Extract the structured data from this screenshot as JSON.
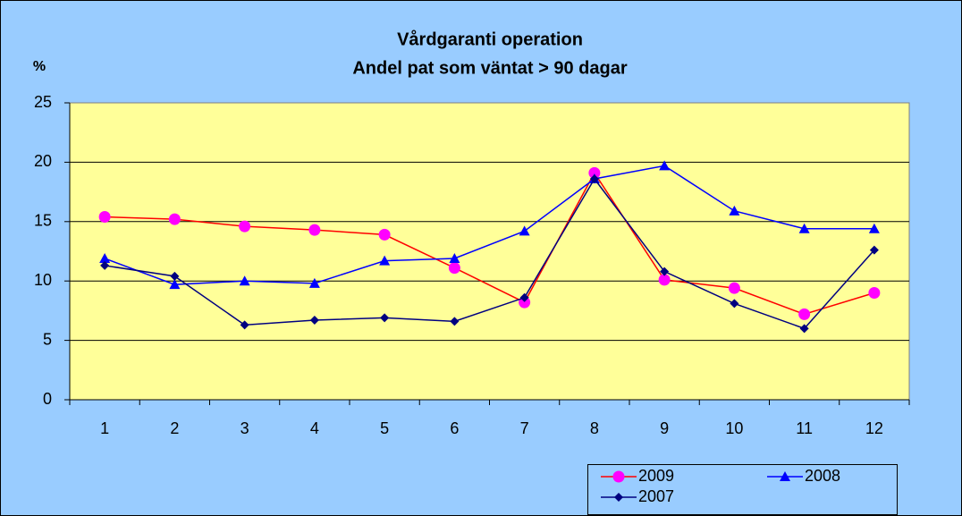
{
  "chart_data": {
    "type": "line",
    "title": "Vårdgaranti operation",
    "subtitle": "Andel pat som väntat > 90 dagar",
    "y_label": "%",
    "categories": [
      1,
      2,
      3,
      4,
      5,
      6,
      7,
      8,
      9,
      10,
      11,
      12
    ],
    "series": [
      {
        "name": "2009",
        "color": "#ff0000",
        "marker_color": "#ff00ff",
        "marker": "circle",
        "values": [
          15.4,
          15.2,
          14.6,
          14.3,
          13.9,
          11.1,
          8.2,
          19.1,
          10.1,
          9.4,
          7.2,
          9.0
        ]
      },
      {
        "name": "2008",
        "color": "#0000ff",
        "marker_color": "#0000ff",
        "marker": "triangle",
        "values": [
          11.9,
          9.7,
          10.0,
          9.8,
          11.7,
          11.9,
          14.2,
          18.6,
          19.7,
          15.9,
          14.4,
          14.4
        ]
      },
      {
        "name": "2007",
        "color": "#000080",
        "marker_color": "#000080",
        "marker": "diamond",
        "values": [
          11.3,
          10.4,
          6.3,
          6.7,
          6.9,
          6.6,
          8.6,
          18.6,
          10.8,
          8.1,
          6.0,
          12.6
        ]
      }
    ],
    "ylim": [
      0,
      25
    ],
    "yticks": [
      0,
      5,
      10,
      15,
      20,
      25
    ],
    "grid": true,
    "legend": "bottom-right"
  }
}
